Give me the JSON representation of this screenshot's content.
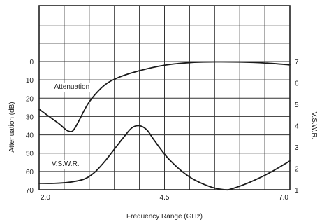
{
  "chart_data": {
    "type": "line",
    "title": "",
    "xlabel": "Frequency Range (GHz)",
    "ylabel_left": "Attenuation (dB)",
    "ylabel_right": "V.S.W.R.",
    "xlim": [
      2.0,
      7.0
    ],
    "ylim_left": [
      0,
      70
    ],
    "ylim_right": [
      1,
      7
    ],
    "left_axis_inverted": true,
    "x_tick_labels": [
      {
        "value": 2.0,
        "label": "2.0"
      },
      {
        "value": 4.5,
        "label": "4.5"
      },
      {
        "value": 7.0,
        "label": "7.0"
      }
    ],
    "y_left_ticks": [
      0,
      10,
      20,
      30,
      40,
      50,
      60,
      70
    ],
    "y_right_ticks": [
      1,
      2,
      3,
      4,
      5,
      6,
      7
    ],
    "grid": true,
    "annotations": [
      {
        "text": "Attenuation",
        "x": 2.3,
        "y_left": 15
      },
      {
        "text": "V.S.W.R.",
        "x": 2.25,
        "y_left": 57
      }
    ],
    "series": [
      {
        "name": "Attenuation",
        "axis": "left",
        "x": [
          2.0,
          2.2,
          2.4,
          2.55,
          2.65,
          2.72,
          2.8,
          3.0,
          3.3,
          3.6,
          4.0,
          4.5,
          5.0,
          5.5,
          6.0,
          6.5,
          7.0
        ],
        "y": [
          26,
          30,
          34,
          37.5,
          38.2,
          36,
          32,
          22,
          13,
          8.5,
          5,
          2,
          0.6,
          0.2,
          0.3,
          0.8,
          1.8
        ]
      },
      {
        "name": "V.S.W.R.",
        "axis": "right",
        "x": [
          2.0,
          2.3,
          2.6,
          2.9,
          3.1,
          3.3,
          3.5,
          3.7,
          3.85,
          4.0,
          4.15,
          4.3,
          4.6,
          5.0,
          5.4,
          5.7,
          5.85,
          6.2,
          6.6,
          7.0
        ],
        "y": [
          1.3,
          1.3,
          1.35,
          1.5,
          1.8,
          2.3,
          2.9,
          3.5,
          3.9,
          4.0,
          3.8,
          3.3,
          2.4,
          1.6,
          1.15,
          1.0,
          1.05,
          1.35,
          1.8,
          2.35
        ]
      }
    ]
  }
}
